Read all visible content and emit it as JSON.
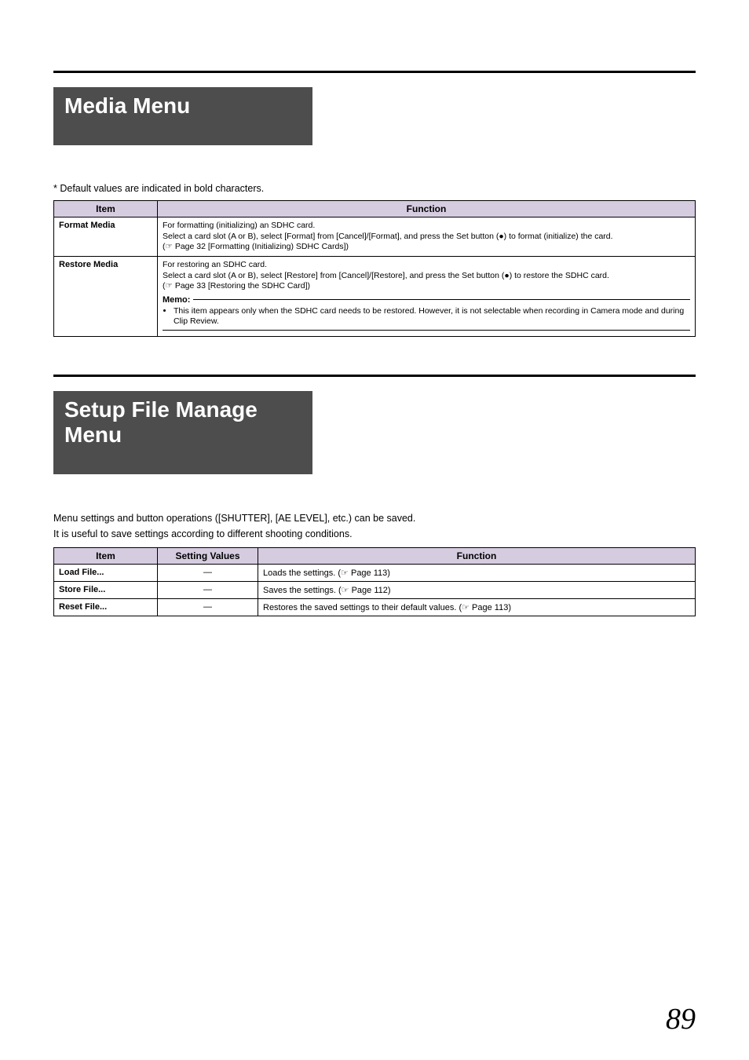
{
  "page": {
    "number": "89"
  },
  "colors": {
    "title_bg": "#4d4d4d",
    "title_fg": "#ffffff",
    "th_bg": "#d6cce0",
    "rule": "#000000"
  },
  "section1": {
    "title": "Media Menu",
    "default_note": "* Default values are indicated in bold characters.",
    "headers": {
      "item": "Item",
      "function": "Function"
    },
    "rows": {
      "format_media": {
        "item": "Format Media",
        "line1": "For formatting (initializing) an SDHC card.",
        "line2": "Select a card slot (A or B), select [Format] from [Cancel]/[Format], and press the Set button (●) to format (initialize) the card.",
        "line3": "(☞ Page 32 [Formatting (Initializing) SDHC Cards])"
      },
      "restore_media": {
        "item": "Restore Media",
        "line1": "For restoring an SDHC card.",
        "line2": "Select a card slot (A or B), select [Restore] from [Cancel]/[Restore], and press the Set button (●) to restore the SDHC card.",
        "line3": "(☞ Page 33 [Restoring the SDHC Card])",
        "memo_label": "Memo:",
        "memo_item": "This item appears only when the SDHC card needs to be restored. However, it is not selectable when recording in Camera mode and during Clip Review."
      }
    }
  },
  "section2": {
    "title": "Setup File Manage Menu",
    "intro1": "Menu settings and button operations ([SHUTTER], [AE LEVEL], etc.) can be saved.",
    "intro2": "It is useful to save settings according to different shooting conditions.",
    "headers": {
      "item": "Item",
      "setting": "Setting Values",
      "function": "Function"
    },
    "rows": {
      "load": {
        "item": "Load File...",
        "setting": "—",
        "function": "Loads the settings. (☞  Page 113)"
      },
      "store": {
        "item": "Store File...",
        "setting": "—",
        "function": "Saves the settings. (☞  Page 112)"
      },
      "reset": {
        "item": "Reset File...",
        "setting": "—",
        "function": "Restores the saved settings to their default values. (☞  Page 113)"
      }
    }
  }
}
